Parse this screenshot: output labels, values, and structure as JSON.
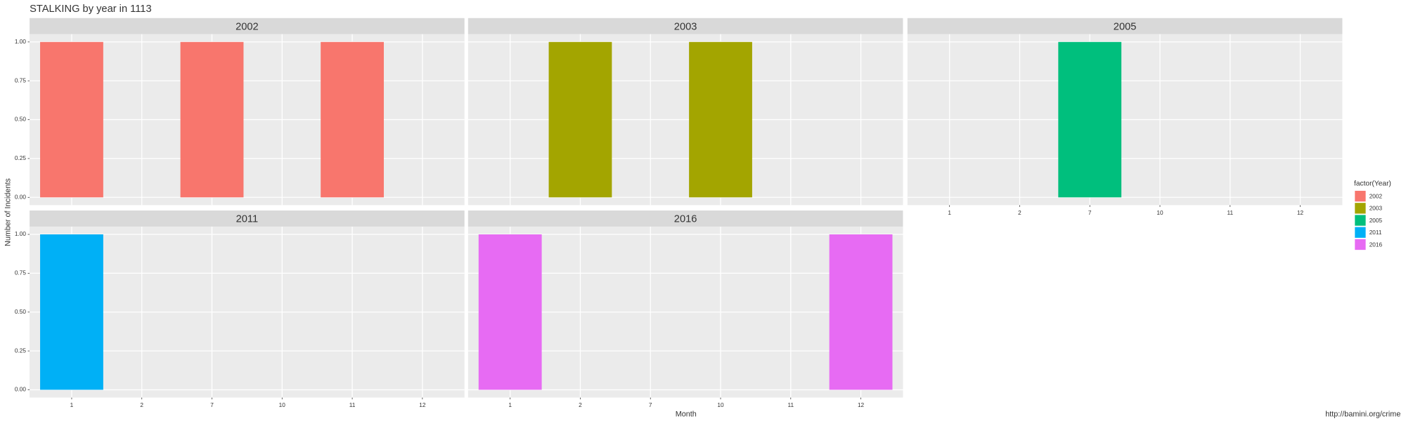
{
  "chart_data": {
    "type": "bar",
    "title": "STALKING by year in 1113",
    "x_label": "Month",
    "y_label": "Number of Incidents",
    "categories": [
      "1",
      "2",
      "7",
      "10",
      "11",
      "12"
    ],
    "ylim": [
      0,
      1
    ],
    "yticks": [
      {
        "value": 0,
        "label": "0.00"
      },
      0.25,
      {
        "value": 0.5,
        "label": "0.50"
      },
      0.75,
      {
        "value": 1,
        "label": "1.00"
      }
    ],
    "grid": true,
    "legend_title": "factor(Year)",
    "legend_position": "right",
    "series": [
      {
        "name": "2002",
        "color": "#F8766D",
        "values": [
          1,
          null,
          1,
          null,
          1,
          null
        ]
      },
      {
        "name": "2003",
        "color": "#A3A500",
        "values": [
          null,
          1,
          null,
          1,
          null,
          null
        ]
      },
      {
        "name": "2005",
        "color": "#00BF7D",
        "values": [
          null,
          null,
          1,
          null,
          null,
          null
        ]
      },
      {
        "name": "2011",
        "color": "#00B0F6",
        "values": [
          1,
          null,
          null,
          null,
          null,
          null
        ]
      },
      {
        "name": "2016",
        "color": "#E76BF3",
        "values": [
          1,
          null,
          null,
          null,
          null,
          1
        ]
      }
    ],
    "caption": "http://bamini.org/crime"
  }
}
